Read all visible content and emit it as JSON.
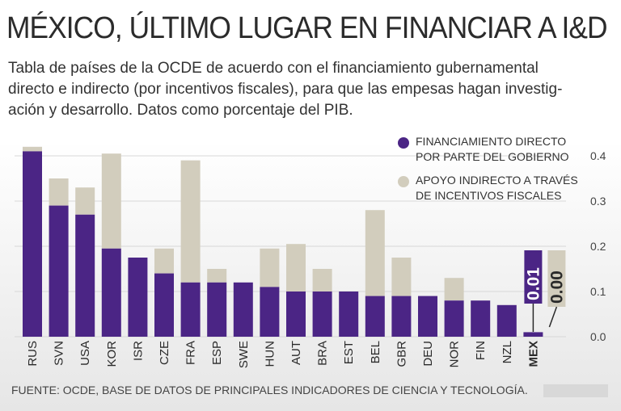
{
  "title": "MÉXICO, ÚLTIMO LUGAR EN FINANCIAR A I&D",
  "subtitle_lines": [
    "Tabla de países de la OCDE de acuerdo con el financiamiento gubernamental",
    "directo e indirecto (por incentivos fiscales), para que las empesas hagan investig-",
    "ación y desarrollo. Datos como porcentaje del PIB."
  ],
  "legend": [
    {
      "label": "FINANCIAMIENTO DIRECTO POR PARTE DEL GOBIERNO",
      "color": "#4b2585"
    },
    {
      "label": "APOYO INDIRECTO A TRAVÉS DE INCENTIVOS FISCALES",
      "color": "#d2cdbd"
    }
  ],
  "footer": "FUENTE: OCDE, BASE DE DATOS DE PRINCIPALES INDICADORES DE CIENCIA Y TECNOLOGÍA.",
  "colors": {
    "direct": "#4b2585",
    "indirect": "#d2cdbd",
    "text": "#2a2a2a"
  },
  "chart_data": {
    "type": "bar",
    "stacked": true,
    "title": "MÉXICO, ÚLTIMO LUGAR EN FINANCIAR A I&D",
    "xlabel": "",
    "ylabel": "",
    "ylim": [
      0,
      0.4
    ],
    "y_ticks": [
      "0.0",
      "0.1",
      "0.2",
      "0.3",
      "0.4"
    ],
    "categories": [
      "RUS",
      "SVN",
      "USA",
      "KOR",
      "ISR",
      "CZE",
      "FRA",
      "ESP",
      "SWE",
      "HUN",
      "AUT",
      "BRA",
      "EST",
      "BEL",
      "GBR",
      "DEU",
      "NOR",
      "FIN",
      "NZL",
      "MEX"
    ],
    "series": [
      {
        "name": "FINANCIAMIENTO DIRECTO POR PARTE DEL GOBIERNO",
        "values": [
          0.41,
          0.29,
          0.27,
          0.195,
          0.175,
          0.14,
          0.12,
          0.12,
          0.12,
          0.11,
          0.1,
          0.1,
          0.1,
          0.09,
          0.09,
          0.09,
          0.08,
          0.08,
          0.07,
          0.01
        ]
      },
      {
        "name": "APOYO INDIRECTO A TRAVÉS DE INCENTIVOS FISCALES",
        "values": [
          0.01,
          0.06,
          0.06,
          0.21,
          0.0,
          0.055,
          0.27,
          0.03,
          0.0,
          0.085,
          0.105,
          0.05,
          0.0,
          0.19,
          0.085,
          0.0,
          0.05,
          0.0,
          0.0,
          0.0
        ]
      }
    ],
    "highlight": {
      "category": "MEX",
      "labels": [
        "0.01",
        "0.00"
      ]
    }
  }
}
